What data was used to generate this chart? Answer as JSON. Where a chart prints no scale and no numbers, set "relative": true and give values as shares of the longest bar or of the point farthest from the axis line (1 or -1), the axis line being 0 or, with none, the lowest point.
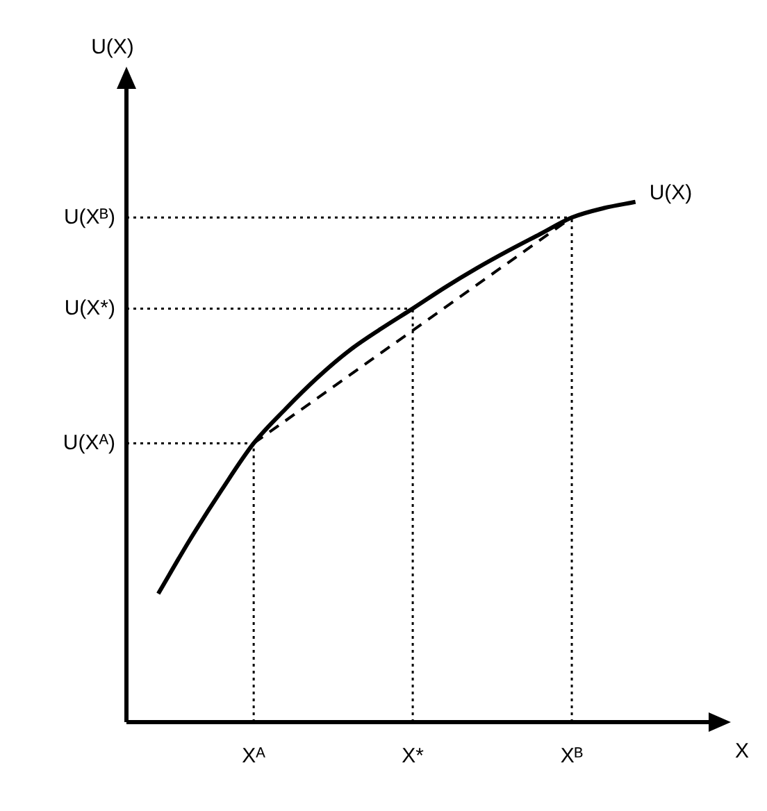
{
  "chart_data": {
    "type": "line",
    "relative": true,
    "xlabel": "X",
    "annotations": [
      "U(X)"
    ],
    "categories": [
      null,
      null,
      null,
      "Xᴬ",
      null,
      null,
      null,
      null,
      "X*",
      null,
      null,
      null,
      null,
      "Xᴮ",
      null,
      null
    ],
    "series": [
      {
        "name": "U(X)",
        "color": "#000000",
        "line_style": "solid",
        "values": [
          0.247,
          0.351,
          0.447,
          0.536,
          0.602,
          0.662,
          0.714,
          0.756,
          0.795,
          0.835,
          0.872,
          0.906,
          0.938,
          0.97,
          0.988,
          1
        ]
      },
      {
        "color": "#000000",
        "line_style": "dashed",
        "values": [
          null,
          null,
          null,
          0.536,
          null,
          null,
          null,
          null,
          null,
          null,
          null,
          null,
          null,
          0.97,
          null,
          null
        ]
      }
    ],
    "ref_lines": [
      {
        "axis": "x",
        "value": "Xᴬ",
        "line_style": "dotted"
      },
      {
        "axis": "x",
        "value": "X*",
        "line_style": "dotted"
      },
      {
        "axis": "x",
        "value": "Xᴮ",
        "line_style": "dotted"
      },
      {
        "axis": "y",
        "value": 0.536,
        "label": "U(Xᴬ)",
        "line_style": "dotted"
      },
      {
        "axis": "y",
        "value": 0.795,
        "label": "U(X*)",
        "line_style": "dotted"
      },
      {
        "axis": "y",
        "value": 0.97,
        "label": "U(Xᴮ)",
        "line_style": "dotted"
      }
    ],
    "grid": false,
    "legend": false,
    "marker": "none"
  }
}
